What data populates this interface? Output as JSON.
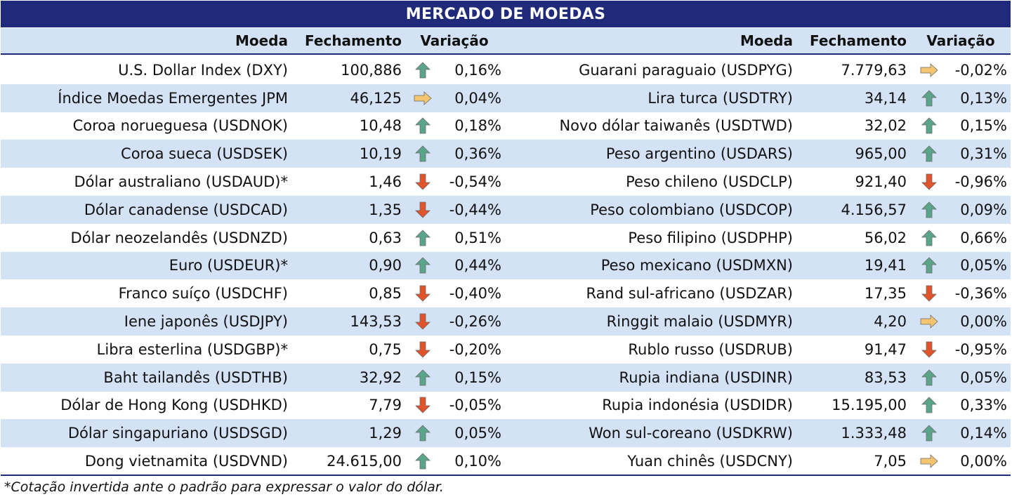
{
  "title": "MERCADO DE MOEDAS",
  "headers": {
    "currency": "Moeda",
    "close": "Fechamento",
    "change": "Variação"
  },
  "colors": {
    "up": "#5aa58a",
    "down": "#e0532b",
    "flat": "#f5c46e",
    "header_bg": "#1f2a7a",
    "stripe_bg": "#d3e2f5"
  },
  "left": [
    {
      "name": "U.S. Dollar Index (DXY)",
      "close": "100,886",
      "dir": "up",
      "change": "0,16%"
    },
    {
      "name": "Índice Moedas Emergentes JPM",
      "close": "46,125",
      "dir": "flat",
      "change": "0,04%"
    },
    {
      "name": "Coroa norueguesa (USDNOK)",
      "close": "10,48",
      "dir": "up",
      "change": "0,18%"
    },
    {
      "name": "Coroa sueca (USDSEK)",
      "close": "10,19",
      "dir": "up",
      "change": "0,36%"
    },
    {
      "name": "Dólar australiano (USDAUD)*",
      "close": "1,46",
      "dir": "down",
      "change": "-0,54%"
    },
    {
      "name": "Dólar canadense (USDCAD)",
      "close": "1,35",
      "dir": "down",
      "change": "-0,44%"
    },
    {
      "name": "Dólar neozelandês (USDNZD)",
      "close": "0,63",
      "dir": "up",
      "change": "0,51%"
    },
    {
      "name": "Euro (USDEUR)*",
      "close": "0,90",
      "dir": "up",
      "change": "0,44%"
    },
    {
      "name": "Franco suíço (USDCHF)",
      "close": "0,85",
      "dir": "down",
      "change": "-0,40%"
    },
    {
      "name": "Iene japonês (USDJPY)",
      "close": "143,53",
      "dir": "down",
      "change": "-0,26%"
    },
    {
      "name": "Libra esterlina (USDGBP)*",
      "close": "0,75",
      "dir": "down",
      "change": "-0,20%"
    },
    {
      "name": "Baht tailandês (USDTHB)",
      "close": "32,92",
      "dir": "up",
      "change": "0,15%"
    },
    {
      "name": "Dólar de Hong Kong (USDHKD)",
      "close": "7,79",
      "dir": "down",
      "change": "-0,05%"
    },
    {
      "name": "Dólar singapuriano (USDSGD)",
      "close": "1,29",
      "dir": "up",
      "change": "0,05%"
    },
    {
      "name": "Dong vietnamita (USDVND)",
      "close": "24.615,00",
      "dir": "up",
      "change": "0,10%"
    }
  ],
  "right": [
    {
      "name": "Guarani paraguaio (USDPYG)",
      "close": "7.779,63",
      "dir": "flat",
      "change": "-0,02%"
    },
    {
      "name": "Lira turca (USDTRY)",
      "close": "34,14",
      "dir": "up",
      "change": "0,13%"
    },
    {
      "name": "Novo dólar taiwanês (USDTWD)",
      "close": "32,02",
      "dir": "up",
      "change": "0,15%"
    },
    {
      "name": "Peso argentino (USDARS)",
      "close": "965,00",
      "dir": "up",
      "change": "0,31%"
    },
    {
      "name": "Peso chileno (USDCLP)",
      "close": "921,40",
      "dir": "down",
      "change": "-0,96%"
    },
    {
      "name": "Peso colombiano (USDCOP)",
      "close": "4.156,57",
      "dir": "up",
      "change": "0,09%"
    },
    {
      "name": "Peso filipino (USDPHP)",
      "close": "56,02",
      "dir": "up",
      "change": "0,66%"
    },
    {
      "name": "Peso mexicano (USDMXN)",
      "close": "19,41",
      "dir": "up",
      "change": "0,05%"
    },
    {
      "name": "Rand sul-africano (USDZAR)",
      "close": "17,35",
      "dir": "down",
      "change": "-0,36%"
    },
    {
      "name": "Ringgit malaio (USDMYR)",
      "close": "4,20",
      "dir": "flat",
      "change": "0,00%"
    },
    {
      "name": "Rublo russo (USDRUB)",
      "close": "91,47",
      "dir": "down",
      "change": "-0,95%"
    },
    {
      "name": "Rupia indiana (USDINR)",
      "close": "83,53",
      "dir": "up",
      "change": "0,05%"
    },
    {
      "name": "Rupia indonésia (USDIDR)",
      "close": "15.195,00",
      "dir": "up",
      "change": "0,33%"
    },
    {
      "name": "Won sul-coreano (USDKRW)",
      "close": "1.333,48",
      "dir": "up",
      "change": "0,14%"
    },
    {
      "name": "Yuan chinês (USDCNY)",
      "close": "7,05",
      "dir": "flat",
      "change": "0,00%"
    }
  ],
  "footnote": "*Cotação invertida ante o padrão para expressar o valor do dólar."
}
